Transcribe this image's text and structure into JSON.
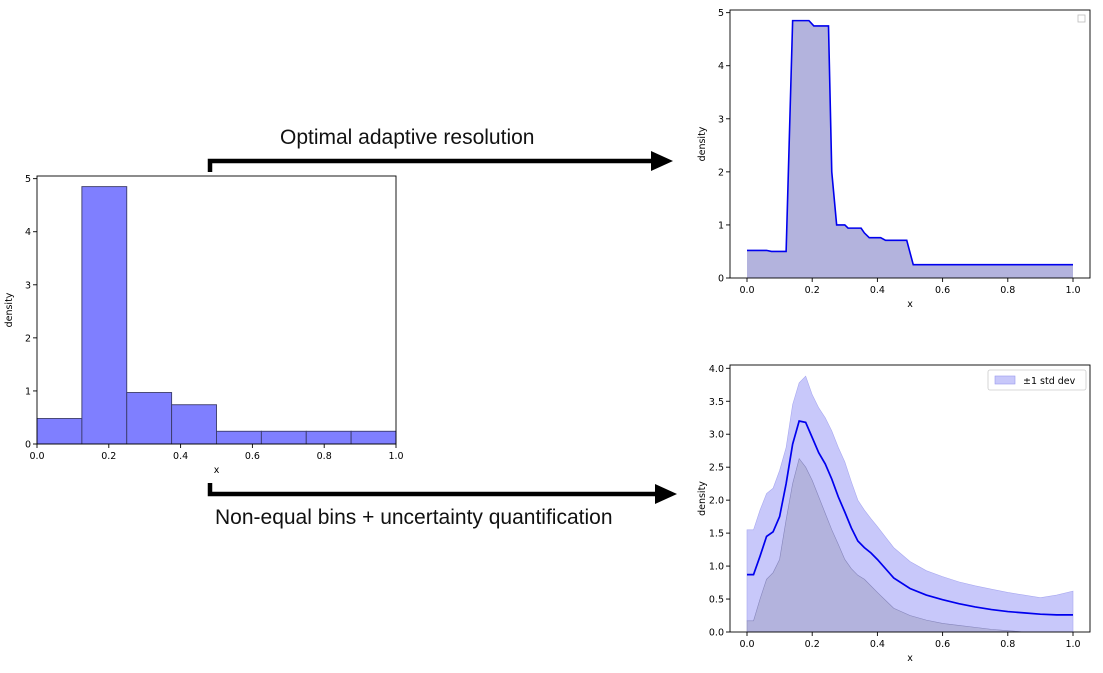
{
  "captions": {
    "top": "Optimal adaptive resolution",
    "bottom": "Non-equal bins + uncertainty quantification"
  },
  "colors": {
    "hist_fill": "#7f7fff",
    "line": "#0000ee",
    "area_fill": "#b3b3dd",
    "band_fill": "#c8c8fa",
    "arrow": "#000000"
  },
  "chart_data": [
    {
      "type": "bar",
      "title": "",
      "xlabel": "x",
      "ylabel": "density",
      "xlim": [
        0.0,
        1.0
      ],
      "ylim": [
        0,
        5.05
      ],
      "xticks": [
        "0.0",
        "0.2",
        "0.4",
        "0.6",
        "0.8",
        "1.0"
      ],
      "yticks": [
        "0",
        "1",
        "2",
        "3",
        "4",
        "5"
      ],
      "bin_edges": [
        0.0,
        0.125,
        0.25,
        0.375,
        0.5,
        0.625,
        0.75,
        0.875,
        1.0
      ],
      "values": [
        0.48,
        4.85,
        0.97,
        0.74,
        0.24,
        0.24,
        0.24,
        0.24
      ]
    },
    {
      "type": "area",
      "title": "",
      "xlabel": "x",
      "ylabel": "density",
      "xlim": [
        0.0,
        1.0
      ],
      "ylim": [
        0,
        5.05
      ],
      "xticks": [
        "0.0",
        "0.2",
        "0.4",
        "0.6",
        "0.8",
        "1.0"
      ],
      "yticks": [
        "0",
        "1",
        "2",
        "3",
        "4",
        "5"
      ],
      "legend": "top-right (empty)",
      "x": [
        0.0,
        0.06,
        0.075,
        0.09,
        0.12,
        0.14,
        0.19,
        0.205,
        0.25,
        0.26,
        0.275,
        0.3,
        0.31,
        0.35,
        0.36,
        0.375,
        0.41,
        0.425,
        0.45,
        0.49,
        0.51,
        1.0
      ],
      "values": [
        0.52,
        0.52,
        0.5,
        0.5,
        0.5,
        4.85,
        4.85,
        4.75,
        4.75,
        2.0,
        1.0,
        1.0,
        0.94,
        0.94,
        0.85,
        0.76,
        0.76,
        0.71,
        0.71,
        0.71,
        0.25,
        0.25
      ]
    },
    {
      "type": "line",
      "title": "",
      "xlabel": "x",
      "ylabel": "density",
      "xlim": [
        0.0,
        1.0
      ],
      "ylim": [
        0,
        4.05
      ],
      "xticks": [
        "0.0",
        "0.2",
        "0.4",
        "0.6",
        "0.8",
        "1.0"
      ],
      "yticks": [
        "0.0",
        "0.5",
        "1.0",
        "1.5",
        "2.0",
        "2.5",
        "3.0",
        "3.5",
        "4.0"
      ],
      "legend": "top-right",
      "legend_label": "±1 std dev",
      "x": [
        0.0,
        0.02,
        0.04,
        0.06,
        0.08,
        0.1,
        0.12,
        0.14,
        0.16,
        0.18,
        0.2,
        0.22,
        0.24,
        0.26,
        0.28,
        0.3,
        0.32,
        0.34,
        0.36,
        0.38,
        0.4,
        0.45,
        0.5,
        0.55,
        0.6,
        0.65,
        0.7,
        0.75,
        0.8,
        0.85,
        0.9,
        0.95,
        1.0
      ],
      "series": [
        {
          "name": "",
          "values": [
            0.87,
            0.87,
            1.15,
            1.45,
            1.52,
            1.75,
            2.25,
            2.85,
            3.2,
            3.18,
            2.95,
            2.72,
            2.55,
            2.32,
            2.05,
            1.82,
            1.58,
            1.38,
            1.28,
            1.2,
            1.1,
            0.82,
            0.66,
            0.56,
            0.49,
            0.43,
            0.38,
            0.34,
            0.31,
            0.29,
            0.27,
            0.26,
            0.26
          ]
        },
        {
          "name": "±1 std dev lower",
          "values": [
            0.17,
            0.17,
            0.5,
            0.8,
            0.9,
            1.1,
            1.7,
            2.25,
            2.63,
            2.5,
            2.3,
            2.05,
            1.8,
            1.55,
            1.33,
            1.1,
            0.96,
            0.86,
            0.8,
            0.7,
            0.6,
            0.36,
            0.25,
            0.18,
            0.13,
            0.1,
            0.07,
            0.04,
            0.02,
            0.0,
            0.0,
            0.0,
            0.0
          ]
        },
        {
          "name": "±1 std dev upper",
          "values": [
            1.55,
            1.55,
            1.85,
            2.1,
            2.18,
            2.45,
            2.8,
            3.45,
            3.78,
            3.88,
            3.6,
            3.4,
            3.25,
            3.05,
            2.8,
            2.58,
            2.28,
            2.0,
            1.85,
            1.72,
            1.6,
            1.28,
            1.07,
            0.93,
            0.84,
            0.76,
            0.7,
            0.65,
            0.6,
            0.56,
            0.52,
            0.56,
            0.62
          ]
        }
      ]
    }
  ]
}
